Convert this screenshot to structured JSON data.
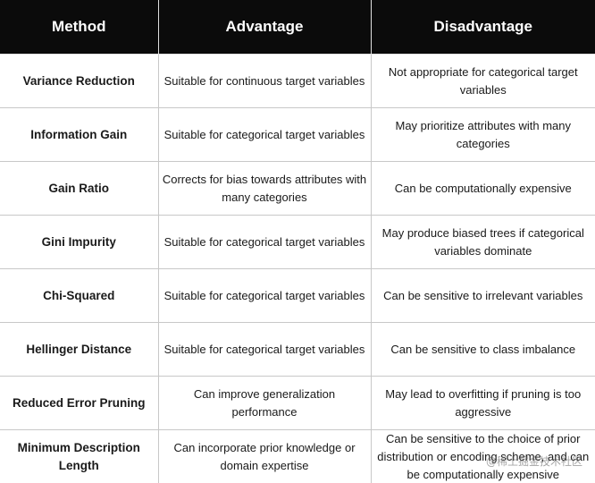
{
  "table": {
    "headers": [
      "Method",
      "Advantage",
      "Disadvantage"
    ],
    "rows": [
      {
        "method": "Variance Reduction",
        "advantage": "Suitable for continuous target variables",
        "disadvantage": "Not appropriate for categorical target variables"
      },
      {
        "method": "Information Gain",
        "advantage": "Suitable for categorical target variables",
        "disadvantage": "May prioritize attributes with many categories"
      },
      {
        "method": "Gain Ratio",
        "advantage": "Corrects for bias towards attributes with many categories",
        "disadvantage": "Can be computationally expensive"
      },
      {
        "method": "Gini Impurity",
        "advantage": "Suitable for categorical target variables",
        "disadvantage": "May produce biased trees if categorical variables dominate"
      },
      {
        "method": "Chi-Squared",
        "advantage": "Suitable for categorical target variables",
        "disadvantage": "Can be sensitive to irrelevant variables"
      },
      {
        "method": "Hellinger Distance",
        "advantage": "Suitable for categorical target variables",
        "disadvantage": "Can be sensitive to class imbalance"
      },
      {
        "method": "Reduced Error Pruning",
        "advantage": "Can improve generalization performance",
        "disadvantage": "May lead to overfitting if pruning is too aggressive"
      },
      {
        "method": "Minimum Description Length",
        "advantage": "Can incorporate prior knowledge or domain expertise",
        "disadvantage": "Can be sensitive to the choice of prior distribution or encoding scheme, and can be computationally expensive"
      }
    ]
  },
  "watermark": "@稀土掘金技术社区",
  "colors": {
    "header_bg": "#0b0b0b",
    "header_text": "#ffffff",
    "grid_line": "#c8c8c8"
  }
}
